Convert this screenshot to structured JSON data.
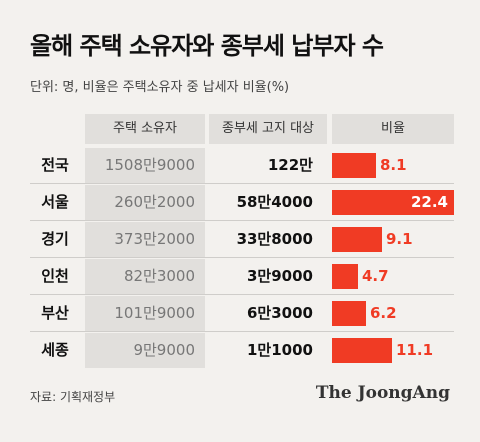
{
  "title": "올해 주택 소유자와 종부세 납부자 수",
  "subtitle": "단위: 명, 비율은 주택소유자 중 납세자 비율(%)",
  "table": {
    "headers": [
      "주택 소유자",
      "종부세 고지 대상",
      "비율"
    ]
  },
  "chart_data": {
    "type": "bar",
    "title": "올해 주택 소유자와 종부세 납부자 수",
    "categories": [
      "전국",
      "서울",
      "경기",
      "인천",
      "부산",
      "세종"
    ],
    "owners": [
      "1508만9000",
      "260만2000",
      "373만2000",
      "82만3000",
      "101만9000",
      "9만9000"
    ],
    "taxpayers": [
      "122만",
      "58만4000",
      "33만8000",
      "3만9000",
      "6만3000",
      "1만1000"
    ],
    "series": [
      {
        "values": [
          8.1,
          22.4,
          9.1,
          4.7,
          6.2,
          11.1
        ]
      }
    ],
    "value_labels": [
      "8.1",
      "22.4",
      "9.1",
      "4.7",
      "6.2",
      "11.1"
    ],
    "bar_color": "#f03b24",
    "xlim": [
      0,
      22.4
    ]
  },
  "source": "자료: 기획재정부",
  "logo": "The JoongAng"
}
